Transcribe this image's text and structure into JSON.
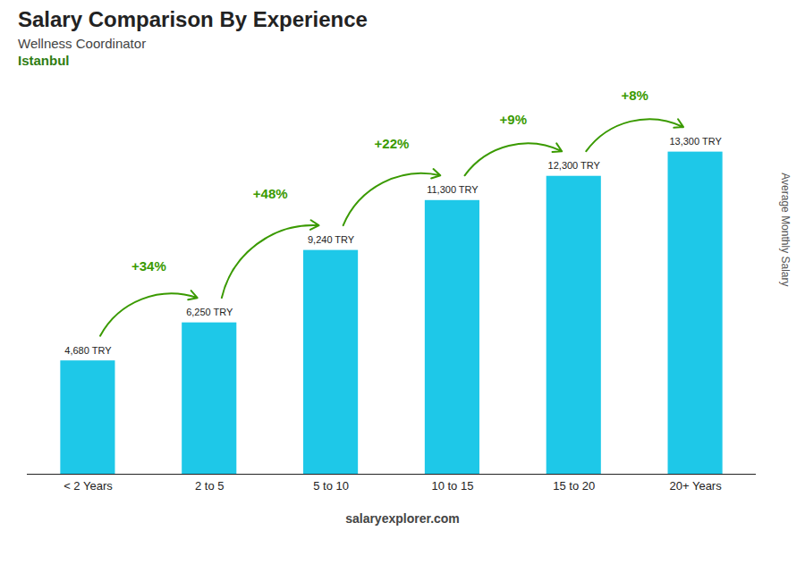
{
  "chart_data": {
    "type": "bar",
    "title": "Salary Comparison By Experience",
    "subtitle": [
      "Wellness Coordinator",
      "Istanbul"
    ],
    "ylabel": "Average Monthly Salary",
    "caption": "salaryexplorer.com",
    "categories": [
      "< 2 Years",
      "2 to 5",
      "5 to 10",
      "10 to 15",
      "15 to 20",
      "20+ Years"
    ],
    "values": [
      4680,
      6250,
      9240,
      11300,
      12300,
      13300
    ],
    "value_labels": [
      "4,680 TRY",
      "6,250 TRY",
      "9,240 TRY",
      "11,300 TRY",
      "12,300 TRY",
      "13,300 TRY"
    ],
    "annotations": [
      "+34%",
      "+48%",
      "+22%",
      "+9%",
      "+8%"
    ],
    "color": "#1ec8e8",
    "ylim": [
      0,
      15500
    ],
    "grid": false,
    "data_labels": true,
    "tick_labels": "x"
  }
}
